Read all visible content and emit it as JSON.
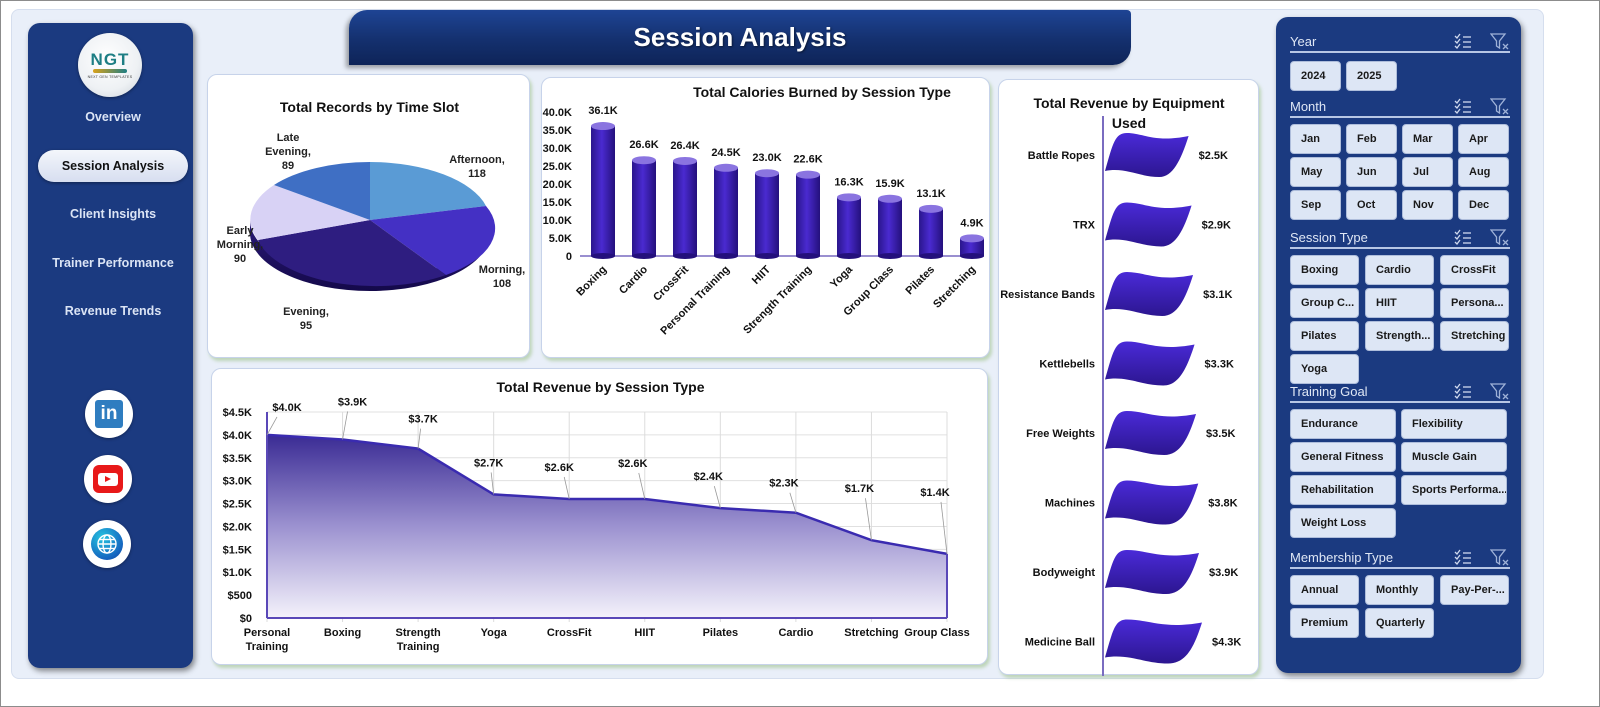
{
  "page": {
    "title": "Session Analysis"
  },
  "nav": {
    "logo": {
      "text": "NGT",
      "subtitle": "NEXT GEN TEMPLATES"
    },
    "items": [
      {
        "label": "Overview",
        "active": false
      },
      {
        "label": "Session Analysis",
        "active": true
      },
      {
        "label": "Client Insights",
        "active": false
      },
      {
        "label": "Trainer Performance",
        "active": false
      },
      {
        "label": "Revenue Trends",
        "active": false
      }
    ],
    "social": [
      {
        "icon": "linkedin-icon",
        "label": "in"
      },
      {
        "icon": "youtube-icon"
      },
      {
        "icon": "globe-icon"
      }
    ]
  },
  "slicers": [
    {
      "title": "Year",
      "options": [
        "2024",
        "2025"
      ]
    },
    {
      "title": "Month",
      "options": [
        "Jan",
        "Feb",
        "Mar",
        "Apr",
        "May",
        "Jun",
        "Jul",
        "Aug",
        "Sep",
        "Oct",
        "Nov",
        "Dec"
      ]
    },
    {
      "title": "Session Type",
      "options": [
        "Boxing",
        "Cardio",
        "CrossFit",
        "Group C...",
        "HIIT",
        "Persona...",
        "Pilates",
        "Strength...",
        "Stretching",
        "Yoga"
      ]
    },
    {
      "title": "Training Goal",
      "options": [
        "Endurance",
        "Flexibility",
        "General Fitness",
        "Muscle Gain",
        "Rehabilitation",
        "Sports Performa...",
        "Weight Loss"
      ]
    },
    {
      "title": "Membership Type",
      "options": [
        "Annual",
        "Monthly",
        "Pay-Per-...",
        "Premium",
        "Quarterly"
      ]
    }
  ],
  "colors": {
    "navy": "#1b3a80",
    "bar": "#3a1fb0",
    "pie": [
      "#5a9bd5",
      "#4430c4",
      "#2e1d80",
      "#d8d2f5",
      "#3f6fc4"
    ]
  },
  "chart_data": [
    {
      "type": "pie",
      "title": "Total Records by Time Slot",
      "categories": [
        "Afternoon",
        "Morning",
        "Evening",
        "Early Morning",
        "Late Evening"
      ],
      "values": [
        118,
        108,
        95,
        90,
        89
      ],
      "labels": [
        "Afternoon, 118",
        "Morning, 108",
        "Evening, 95",
        "Early Morning, 90",
        "Late Evening, 89"
      ]
    },
    {
      "type": "bar",
      "title": "Total Calories Burned by Session Type",
      "categories": [
        "Boxing",
        "Cardio",
        "CrossFit",
        "Personal Training",
        "HIIT",
        "Strength Training",
        "Yoga",
        "Group Class",
        "Pilates",
        "Stretching"
      ],
      "values": [
        36100,
        26600,
        26400,
        24500,
        23000,
        22600,
        16300,
        15900,
        13100,
        4900
      ],
      "value_labels": [
        "36.1K",
        "26.6K",
        "26.4K",
        "24.5K",
        "23.0K",
        "22.6K",
        "16.3K",
        "15.9K",
        "13.1K",
        "4.9K"
      ],
      "yticks": [
        "0",
        "5.0K",
        "10.0K",
        "15.0K",
        "20.0K",
        "25.0K",
        "30.0K",
        "35.0K",
        "40.0K"
      ],
      "ylim": [
        0,
        40000
      ],
      "xlabel": "",
      "ylabel": ""
    },
    {
      "type": "bar",
      "orientation": "horizontal",
      "title": "Total Revenue by Equipment Used",
      "categories": [
        "Battle Ropes",
        "TRX",
        "Resistance Bands",
        "Kettlebells",
        "Free Weights",
        "Machines",
        "Bodyweight",
        "Medicine Ball"
      ],
      "values": [
        2500,
        2900,
        3100,
        3300,
        3500,
        3800,
        3900,
        4300
      ],
      "value_labels": [
        "$2.5K",
        "$2.9K",
        "$3.1K",
        "$3.3K",
        "$3.5K",
        "$3.8K",
        "$3.9K",
        "$4.3K"
      ]
    },
    {
      "type": "area",
      "title": "Total Revenue by Session Type",
      "categories": [
        "Personal Training",
        "Boxing",
        "Strength Training",
        "Yoga",
        "CrossFit",
        "HIIT",
        "Pilates",
        "Cardio",
        "Stretching",
        "Group Class"
      ],
      "values": [
        4000,
        3900,
        3700,
        2700,
        2600,
        2600,
        2400,
        2300,
        1700,
        1400
      ],
      "value_labels": [
        "$4.0K",
        "$3.9K",
        "$3.7K",
        "$2.7K",
        "$2.6K",
        "$2.6K",
        "$2.4K",
        "$2.3K",
        "$1.7K",
        "$1.4K"
      ],
      "yticks": [
        "$0",
        "$500",
        "$1.0K",
        "$1.5K",
        "$2.0K",
        "$2.5K",
        "$3.0K",
        "$3.5K",
        "$4.0K",
        "$4.5K"
      ],
      "ylim": [
        0,
        4500
      ],
      "grid": true
    }
  ]
}
